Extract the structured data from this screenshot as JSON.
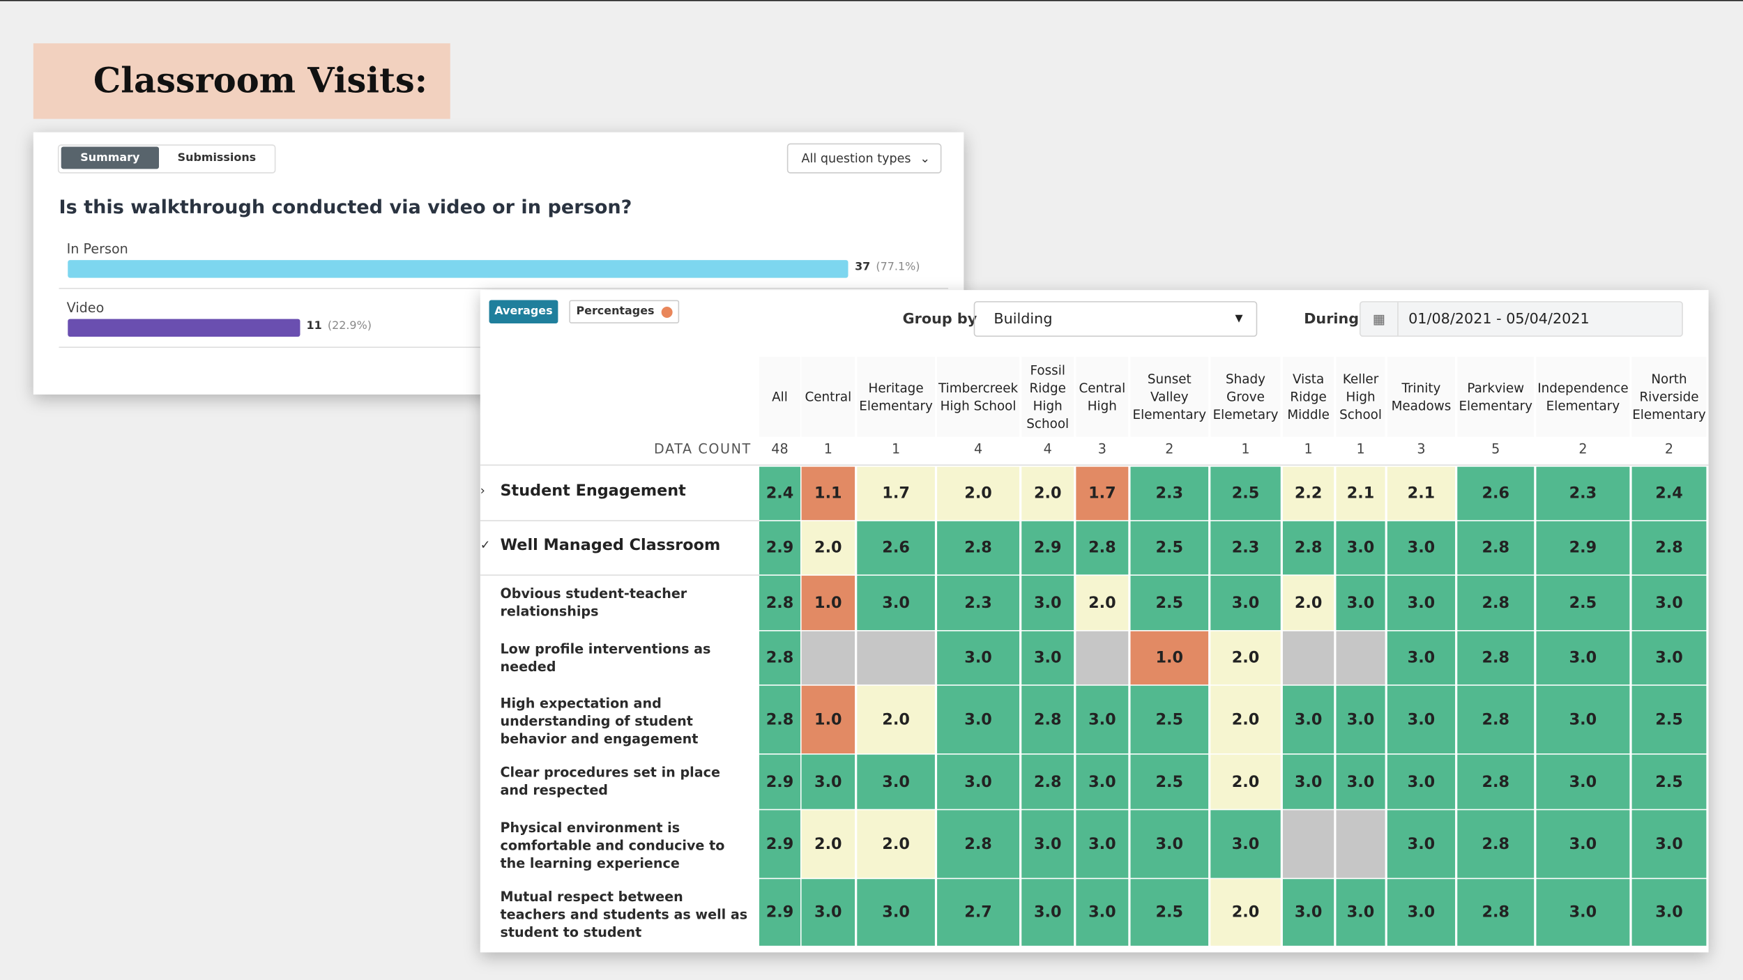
{
  "title": "Classroom Visits:",
  "summary": {
    "tabs": [
      "Summary",
      "Submissions"
    ],
    "filter": "All question types",
    "question": "Is this walkthrough conducted via video or in person?",
    "options": [
      {
        "label": "In Person",
        "count": 37,
        "percent": "(77.1%)",
        "color": "#7dd6ef"
      },
      {
        "label": "Video",
        "count": 11,
        "percent": "(22.9%)",
        "color": "#6a4fb0"
      }
    ]
  },
  "table": {
    "tabs": [
      "Averages",
      "Percentages"
    ],
    "group_by_label": "Group by",
    "group_by": "Building",
    "during_label": "During",
    "date_range": "01/08/2021 - 05/04/2021",
    "columns": [
      "All",
      "Central",
      "Heritage Elementary",
      "Timbercreek High School",
      "Fossil Ridge High School",
      "Central High",
      "Sunset Valley Elementary",
      "Shady Grove Elemetary",
      "Vista Ridge Middle",
      "Keller High School",
      "Trinity Meadows",
      "Parkview Elementary",
      "Independence Elementary",
      "North Riverside Elementary"
    ],
    "count_label": "DATA COUNT",
    "counts": [
      48,
      1,
      1,
      4,
      4,
      3,
      2,
      1,
      1,
      1,
      3,
      5,
      2,
      2
    ],
    "rows": [
      {
        "label": "Student Engagement",
        "group": true,
        "values": [
          "2.4",
          "1.1",
          "1.7",
          "2.0",
          "2.0",
          "1.7",
          "2.3",
          "2.5",
          "2.2",
          "2.1",
          "2.1",
          "2.6",
          "2.3",
          "2.4"
        ],
        "colors": [
          "#52b98f",
          "#e28a64",
          "#f6f5d0",
          "#f6f5d0",
          "#f6f5d0",
          "#e28a64",
          "#52b98f",
          "#52b98f",
          "#f6f5d0",
          "#f6f5d0",
          "#f6f5d0",
          "#52b98f",
          "#52b98f",
          "#52b98f"
        ]
      },
      {
        "label": "Well Managed Classroom",
        "group": true,
        "values": [
          "2.9",
          "2.0",
          "2.6",
          "2.8",
          "2.9",
          "2.8",
          "2.5",
          "2.3",
          "2.8",
          "3.0",
          "3.0",
          "2.8",
          "2.9",
          "2.8"
        ],
        "colors": [
          "#52b98f",
          "#f6f5d0",
          "#52b98f",
          "#52b98f",
          "#52b98f",
          "#52b98f",
          "#52b98f",
          "#52b98f",
          "#52b98f",
          "#52b98f",
          "#52b98f",
          "#52b98f",
          "#52b98f",
          "#52b98f"
        ]
      },
      {
        "label": "Obvious student-teacher relationships",
        "group": false,
        "values": [
          "2.8",
          "1.0",
          "3.0",
          "2.3",
          "3.0",
          "2.0",
          "2.5",
          "3.0",
          "2.0",
          "3.0",
          "3.0",
          "2.8",
          "2.5",
          "3.0"
        ],
        "colors": [
          "#52b98f",
          "#e28a64",
          "#52b98f",
          "#52b98f",
          "#52b98f",
          "#f6f5d0",
          "#52b98f",
          "#52b98f",
          "#f6f5d0",
          "#52b98f",
          "#52b98f",
          "#52b98f",
          "#52b98f",
          "#52b98f"
        ]
      },
      {
        "label": "Low profile interventions as needed",
        "group": false,
        "values": [
          "2.8",
          null,
          null,
          "3.0",
          "3.0",
          null,
          "1.0",
          "2.0",
          null,
          null,
          "3.0",
          "2.8",
          "3.0",
          "3.0"
        ],
        "colors": [
          "#52b98f",
          "#c6c6c6",
          "#c6c6c6",
          "#52b98f",
          "#52b98f",
          "#c6c6c6",
          "#e28a64",
          "#f6f5d0",
          "#c6c6c6",
          "#c6c6c6",
          "#52b98f",
          "#52b98f",
          "#52b98f",
          "#52b98f"
        ]
      },
      {
        "label": "High expectation and understanding of student behavior and engagement",
        "group": false,
        "values": [
          "2.8",
          "1.0",
          "2.0",
          "3.0",
          "2.8",
          "3.0",
          "2.5",
          "2.0",
          "3.0",
          "3.0",
          "3.0",
          "2.8",
          "3.0",
          "2.5"
        ],
        "colors": [
          "#52b98f",
          "#e28a64",
          "#f6f5d0",
          "#52b98f",
          "#52b98f",
          "#52b98f",
          "#52b98f",
          "#f6f5d0",
          "#52b98f",
          "#52b98f",
          "#52b98f",
          "#52b98f",
          "#52b98f",
          "#52b98f"
        ]
      },
      {
        "label": "Clear procedures set in place and respected",
        "group": false,
        "values": [
          "2.9",
          "3.0",
          "3.0",
          "3.0",
          "2.8",
          "3.0",
          "2.5",
          "2.0",
          "3.0",
          "3.0",
          "3.0",
          "2.8",
          "3.0",
          "2.5"
        ],
        "colors": [
          "#52b98f",
          "#52b98f",
          "#52b98f",
          "#52b98f",
          "#52b98f",
          "#52b98f",
          "#52b98f",
          "#f6f5d0",
          "#52b98f",
          "#52b98f",
          "#52b98f",
          "#52b98f",
          "#52b98f",
          "#52b98f"
        ]
      },
      {
        "label": "Physical environment is comfortable and conducive to the learning experience",
        "group": false,
        "values": [
          "2.9",
          "2.0",
          "2.0",
          "2.8",
          "3.0",
          "3.0",
          "3.0",
          "3.0",
          null,
          null,
          "3.0",
          "2.8",
          "3.0",
          "3.0"
        ],
        "colors": [
          "#52b98f",
          "#f6f5d0",
          "#f6f5d0",
          "#52b98f",
          "#52b98f",
          "#52b98f",
          "#52b98f",
          "#52b98f",
          "#c6c6c6",
          "#c6c6c6",
          "#52b98f",
          "#52b98f",
          "#52b98f",
          "#52b98f"
        ]
      },
      {
        "label": "Mutual respect between teachers and students as well as student to student",
        "group": false,
        "values": [
          "2.9",
          "3.0",
          "3.0",
          "2.7",
          "3.0",
          "3.0",
          "2.5",
          "2.0",
          "3.0",
          "3.0",
          "3.0",
          "2.8",
          "3.0",
          "3.0"
        ],
        "colors": [
          "#52b98f",
          "#52b98f",
          "#52b98f",
          "#52b98f",
          "#52b98f",
          "#52b98f",
          "#52b98f",
          "#f6f5d0",
          "#52b98f",
          "#52b98f",
          "#52b98f",
          "#52b98f",
          "#52b98f",
          "#52b98f"
        ]
      }
    ]
  }
}
